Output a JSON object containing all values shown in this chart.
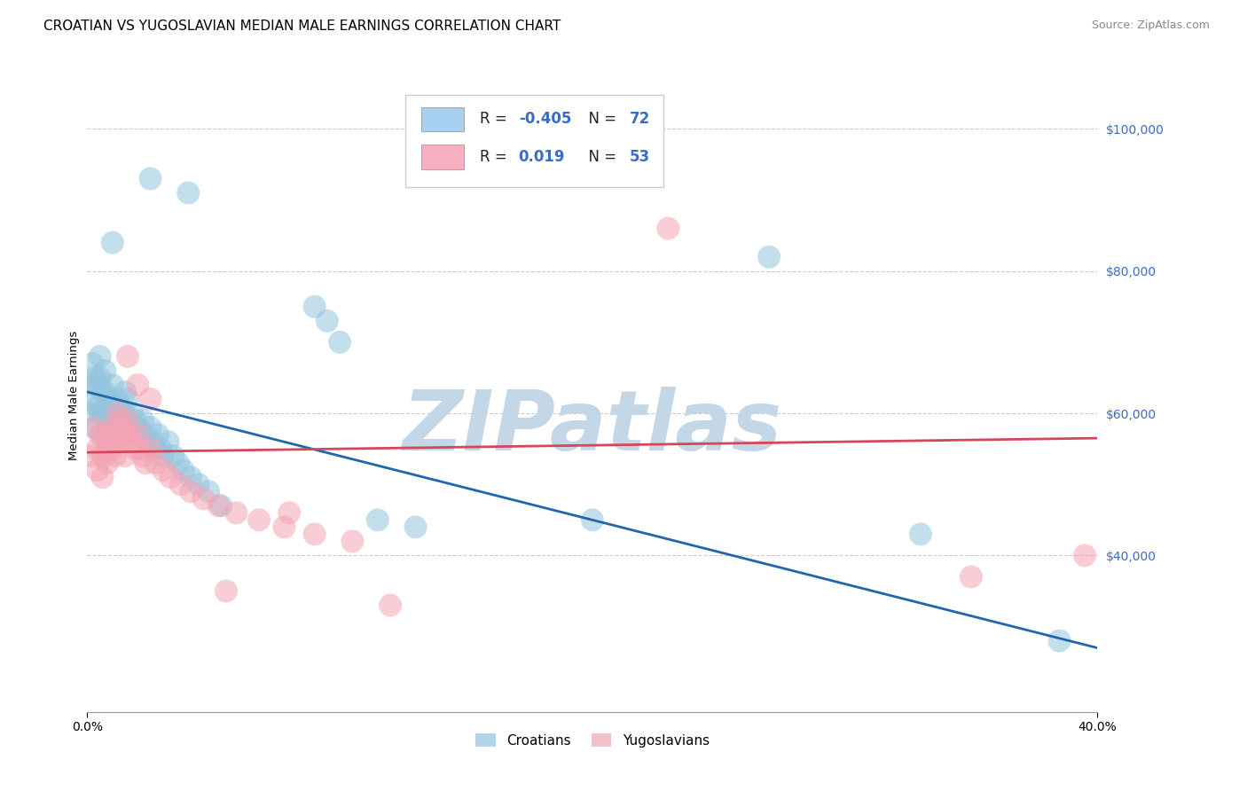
{
  "title": "CROATIAN VS YUGOSLAVIAN MEDIAN MALE EARNINGS CORRELATION CHART",
  "source": "Source: ZipAtlas.com",
  "ylabel": "Median Male Earnings",
  "y_ticks": [
    40000,
    60000,
    80000,
    100000
  ],
  "y_tick_labels": [
    "$40,000",
    "$60,000",
    "$80,000",
    "$100,000"
  ],
  "xlim": [
    0.0,
    0.4
  ],
  "ylim": [
    18000,
    107000
  ],
  "croatians_label": "Croatians",
  "yugoslavians_label": "Yugoslavians",
  "blue_color": "#92c5de",
  "pink_color": "#f4a4b4",
  "blue_line_color": "#2166ac",
  "pink_line_color": "#d6455a",
  "watermark": "ZIPatlas",
  "watermark_color_r": 195,
  "watermark_color_g": 215,
  "watermark_color_b": 230,
  "blue_line_y0": 63000,
  "blue_line_y1": 27000,
  "pink_line_y0": 54500,
  "pink_line_y1": 56500,
  "blue_N": 72,
  "pink_N": 53,
  "blue_R": -0.405,
  "pink_R": 0.019,
  "croatians_x": [
    0.001,
    0.002,
    0.002,
    0.003,
    0.003,
    0.003,
    0.004,
    0.004,
    0.005,
    0.005,
    0.005,
    0.006,
    0.006,
    0.006,
    0.007,
    0.007,
    0.007,
    0.008,
    0.008,
    0.008,
    0.009,
    0.009,
    0.01,
    0.01,
    0.01,
    0.011,
    0.011,
    0.012,
    0.012,
    0.013,
    0.013,
    0.014,
    0.014,
    0.015,
    0.015,
    0.016,
    0.016,
    0.017,
    0.018,
    0.018,
    0.019,
    0.02,
    0.021,
    0.022,
    0.023,
    0.024,
    0.025,
    0.026,
    0.027,
    0.028,
    0.029,
    0.03,
    0.032,
    0.034,
    0.036,
    0.038,
    0.041,
    0.044,
    0.048,
    0.053,
    0.025,
    0.04,
    0.01,
    0.09,
    0.095,
    0.1,
    0.115,
    0.13,
    0.2,
    0.27,
    0.33,
    0.385
  ],
  "croatians_y": [
    64000,
    67000,
    60000,
    65000,
    62000,
    58000,
    64000,
    61000,
    68000,
    65000,
    60000,
    63000,
    60000,
    57000,
    66000,
    63000,
    60000,
    62000,
    59000,
    56000,
    61000,
    58000,
    64000,
    61000,
    58000,
    60000,
    57000,
    62000,
    59000,
    61000,
    58000,
    60000,
    57000,
    63000,
    60000,
    62000,
    59000,
    58000,
    60000,
    57000,
    59000,
    58000,
    57000,
    59000,
    57000,
    56000,
    58000,
    56000,
    55000,
    57000,
    55000,
    54000,
    56000,
    54000,
    53000,
    52000,
    51000,
    50000,
    49000,
    47000,
    93000,
    91000,
    84000,
    75000,
    73000,
    70000,
    45000,
    44000,
    45000,
    82000,
    43000,
    28000
  ],
  "yugoslavians_x": [
    0.002,
    0.003,
    0.004,
    0.004,
    0.005,
    0.006,
    0.006,
    0.007,
    0.007,
    0.008,
    0.008,
    0.009,
    0.01,
    0.01,
    0.011,
    0.011,
    0.012,
    0.012,
    0.013,
    0.013,
    0.014,
    0.015,
    0.015,
    0.016,
    0.017,
    0.018,
    0.019,
    0.02,
    0.021,
    0.022,
    0.023,
    0.025,
    0.027,
    0.03,
    0.033,
    0.037,
    0.041,
    0.046,
    0.052,
    0.059,
    0.068,
    0.078,
    0.09,
    0.105,
    0.016,
    0.02,
    0.025,
    0.12,
    0.23,
    0.35,
    0.055,
    0.08,
    0.395
  ],
  "yugoslavians_y": [
    54000,
    58000,
    55000,
    52000,
    57000,
    54000,
    51000,
    57000,
    54000,
    56000,
    53000,
    55000,
    58000,
    55000,
    57000,
    54000,
    60000,
    57000,
    59000,
    56000,
    58000,
    57000,
    54000,
    59000,
    57000,
    56000,
    55000,
    57000,
    55000,
    54000,
    53000,
    55000,
    53000,
    52000,
    51000,
    50000,
    49000,
    48000,
    47000,
    46000,
    45000,
    44000,
    43000,
    42000,
    68000,
    64000,
    62000,
    33000,
    86000,
    37000,
    35000,
    46000,
    40000
  ]
}
